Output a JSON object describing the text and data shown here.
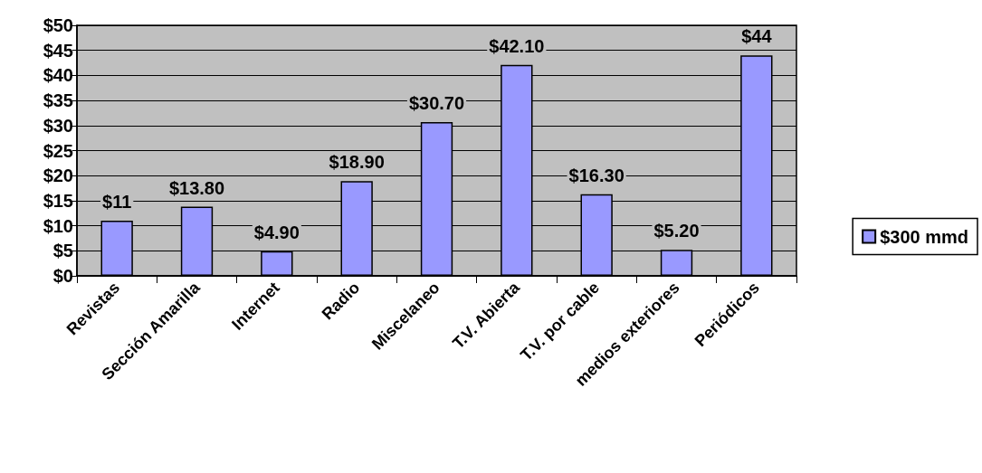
{
  "chart_data": {
    "type": "bar",
    "categories": [
      "Revistas",
      "Sección Amarilla",
      "Internet",
      "Radio",
      "Miscelaneo",
      "T.V. Abierta",
      "T.V. por cable",
      "medios exteriores",
      "Periódicos"
    ],
    "series": [
      {
        "name": "$300 mmd",
        "color": "#9999ff",
        "values": [
          11,
          13.8,
          4.9,
          18.9,
          30.7,
          42.1,
          16.3,
          5.2,
          44
        ],
        "value_labels": [
          "$11",
          "$13.80",
          "$4.90",
          "$18.90",
          "$30.70",
          "$42.10",
          "$16.30",
          "$5.20",
          "$44"
        ]
      }
    ],
    "ylim": [
      0,
      50
    ],
    "yticks": [
      {
        "value": 0,
        "label": "$0"
      },
      {
        "value": 5,
        "label": "$5"
      },
      {
        "value": 10,
        "label": "$10"
      },
      {
        "value": 15,
        "label": "$15"
      },
      {
        "value": 20,
        "label": "$20"
      },
      {
        "value": 25,
        "label": "$25"
      },
      {
        "value": 30,
        "label": "$30"
      },
      {
        "value": 35,
        "label": "$35"
      },
      {
        "value": 40,
        "label": "$40"
      },
      {
        "value": 45,
        "label": "$45"
      },
      {
        "value": 50,
        "label": "$50"
      }
    ],
    "grid": "y",
    "legend": "right"
  }
}
